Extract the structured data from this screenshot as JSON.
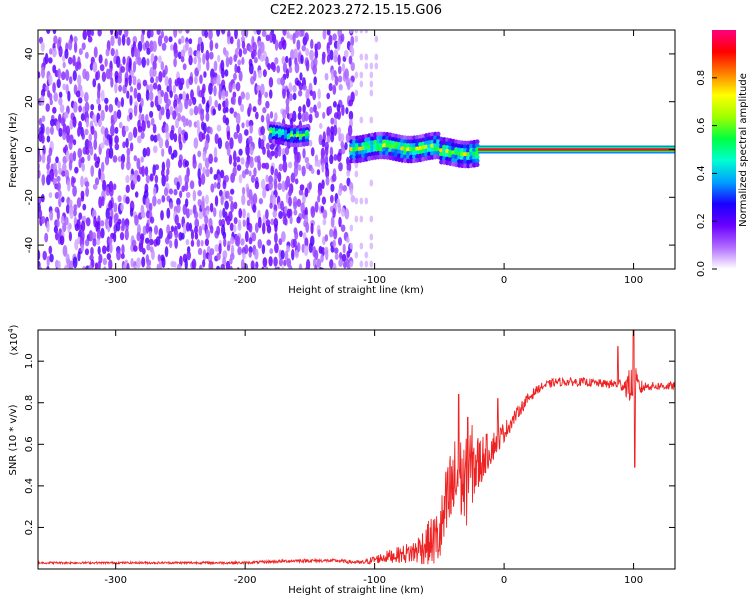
{
  "title": "C2E2.2023.272.15.15.G06",
  "chart_data": [
    {
      "type": "heatmap",
      "title": "C2E2.2023.272.15.15.G06",
      "xlabel": "Height of straight line (km)",
      "ylabel": "Frequency (Hz)",
      "xlim": [
        -360,
        132
      ],
      "ylim": [
        -50,
        50
      ],
      "xticks": [
        -300,
        -200,
        -100,
        0,
        100
      ],
      "xtick_labels": [
        "-300",
        "-200",
        "-100",
        "0",
        "100"
      ],
      "yticks": [
        -40,
        -20,
        0,
        20,
        40
      ],
      "ytick_labels": [
        "-40",
        "-20",
        "0",
        "20",
        "40"
      ],
      "grid": false,
      "colorbar": {
        "label": "Normalized spectral amplitude",
        "range": [
          0,
          1
        ],
        "ticks": [
          0.0,
          0.2,
          0.4,
          0.6,
          0.8
        ],
        "tick_labels": [
          "0.0",
          "0.2",
          "0.4",
          "0.6",
          "0.8"
        ],
        "colormap": [
          "#ffffff",
          "#b06cff",
          "#6a00ff",
          "#1a00ff",
          "#00a0ff",
          "#00ffd0",
          "#00ff40",
          "#a0ff00",
          "#ffff00",
          "#ff8000",
          "#ff0000",
          "#ff0080"
        ]
      },
      "regions": [
        {
          "x": [
            -360,
            -118
          ],
          "freq_center": 0,
          "freq_spread": 50,
          "amplitude": 0.12,
          "pattern": "noise"
        },
        {
          "x": [
            -180,
            -150
          ],
          "freq_center": 3,
          "freq_spread": 3,
          "amplitude": 0.5,
          "pattern": "blob"
        },
        {
          "x": [
            -118,
            -20
          ],
          "freq_center": 0,
          "freq_spread": 4,
          "amplitude": 0.55,
          "pattern": "band"
        },
        {
          "x": [
            -20,
            132
          ],
          "freq_center": 0,
          "freq_spread": 1,
          "amplitude": 0.9,
          "pattern": "line"
        }
      ]
    },
    {
      "type": "line",
      "xlabel": "Height of straight line (km)",
      "ylabel": "SNR (10 * v/v)",
      "y_multiplier_label": "(x10",
      "y_multiplier_exp": "4",
      "y_multiplier_close": ")",
      "xlim": [
        -360,
        132
      ],
      "ylim": [
        0,
        1.15
      ],
      "xticks": [
        -300,
        -200,
        -100,
        0,
        100
      ],
      "xtick_labels": [
        "-300",
        "-200",
        "-100",
        "0",
        "100"
      ],
      "yticks": [
        0.2,
        0.4,
        0.6,
        0.8,
        1.0
      ],
      "ytick_labels": [
        "0.2",
        "0.4",
        "0.6",
        "0.8",
        "1.0"
      ],
      "grid": false,
      "series": [
        {
          "color": "#ee2222",
          "x": [
            -360,
            -300,
            -200,
            -160,
            -130,
            -110,
            -90,
            -80,
            -70,
            -60,
            -50,
            -45,
            -40,
            -35,
            -30,
            -25,
            -20,
            -15,
            -10,
            -5,
            0,
            5,
            10,
            15,
            20,
            25,
            30,
            40,
            60,
            80,
            90,
            95,
            100,
            105,
            110,
            120,
            132
          ],
          "y": [
            0.03,
            0.03,
            0.03,
            0.04,
            0.04,
            0.03,
            0.06,
            0.07,
            0.08,
            0.12,
            0.15,
            0.28,
            0.38,
            0.45,
            0.4,
            0.5,
            0.5,
            0.55,
            0.58,
            0.62,
            0.66,
            0.7,
            0.75,
            0.79,
            0.83,
            0.86,
            0.88,
            0.9,
            0.9,
            0.89,
            0.89,
            0.88,
            0.88,
            0.87,
            0.88,
            0.88,
            0.88
          ],
          "noise": [
            0.005,
            0.005,
            0.006,
            0.008,
            0.008,
            0.01,
            0.03,
            0.04,
            0.06,
            0.1,
            0.15,
            0.2,
            0.25,
            0.2,
            0.22,
            0.2,
            0.15,
            0.1,
            0.08,
            0.06,
            0.05,
            0.04,
            0.03,
            0.03,
            0.03,
            0.02,
            0.02,
            0.02,
            0.02,
            0.02,
            0.03,
            0.06,
            0.12,
            0.04,
            0.02,
            0.02,
            0.02
          ],
          "spikes": [
            {
              "x": -35,
              "y": 0.84
            },
            {
              "x": -28,
              "y": 0.73
            },
            {
              "x": -5,
              "y": 0.82
            },
            {
              "x": 88,
              "y": 1.07
            },
            {
              "x": 100,
              "y": 1.15
            },
            {
              "x": 101,
              "y": 0.49
            }
          ]
        }
      ]
    }
  ]
}
